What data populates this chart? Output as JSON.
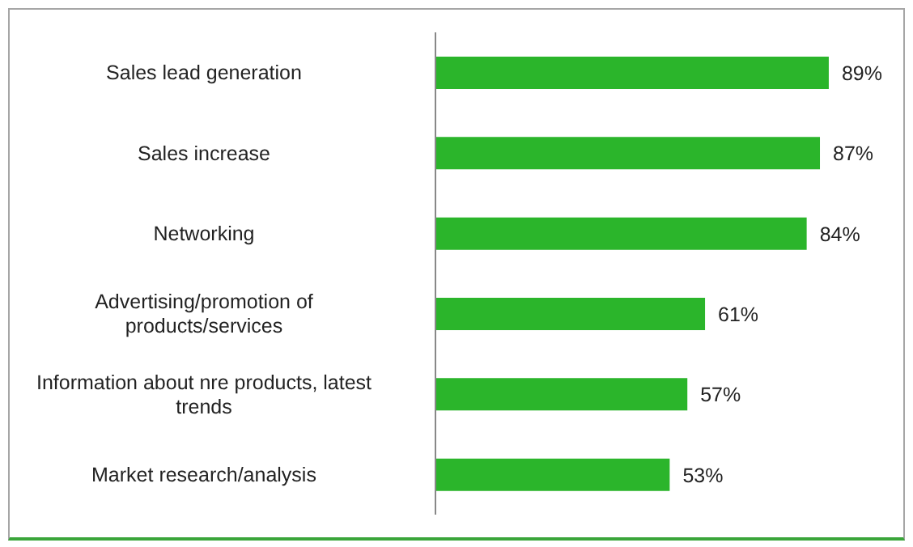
{
  "chart_data": {
    "type": "bar",
    "orientation": "horizontal",
    "categories": [
      "Sales lead generation",
      "Sales increase",
      "Networking",
      "Advertising/promotion of products/services",
      "Information about nre products, latest trends",
      "Market research/analysis"
    ],
    "values": [
      89,
      87,
      84,
      61,
      57,
      53
    ],
    "value_labels": [
      "89%",
      "87%",
      "84%",
      "61%",
      "57%",
      "53%"
    ],
    "color": "#2bb52b",
    "tick_labels": "y",
    "grid": false,
    "legend": false
  }
}
